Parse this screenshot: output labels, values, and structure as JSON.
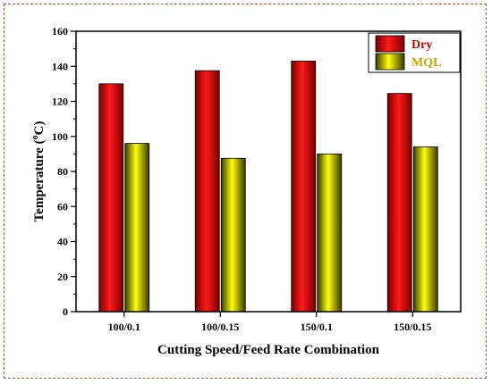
{
  "chart_data": {
    "type": "bar",
    "categories": [
      "100/0.1",
      "100/0.15",
      "150/0.1",
      "150/0.15"
    ],
    "series": [
      {
        "name": "Dry",
        "values": [
          130,
          137.5,
          143,
          124.5
        ],
        "color": "#ee1111",
        "legend_text_color": "#cc0000"
      },
      {
        "name": "MQL",
        "values": [
          96,
          87.5,
          90,
          94
        ],
        "color": "#f2f200",
        "legend_text_color": "#c8a800"
      }
    ],
    "title": "",
    "xlabel": "Cutting Speed/Feed Rate Combination",
    "ylabel_main": "Temperature (",
    "ylabel_sup": "o",
    "ylabel_end": "C)",
    "ylim": [
      0,
      160
    ],
    "yticks": [
      "0",
      "20",
      "40",
      "60",
      "80",
      "100",
      "120",
      "140",
      "160"
    ],
    "legend_position": "top-right",
    "grid": false
  }
}
